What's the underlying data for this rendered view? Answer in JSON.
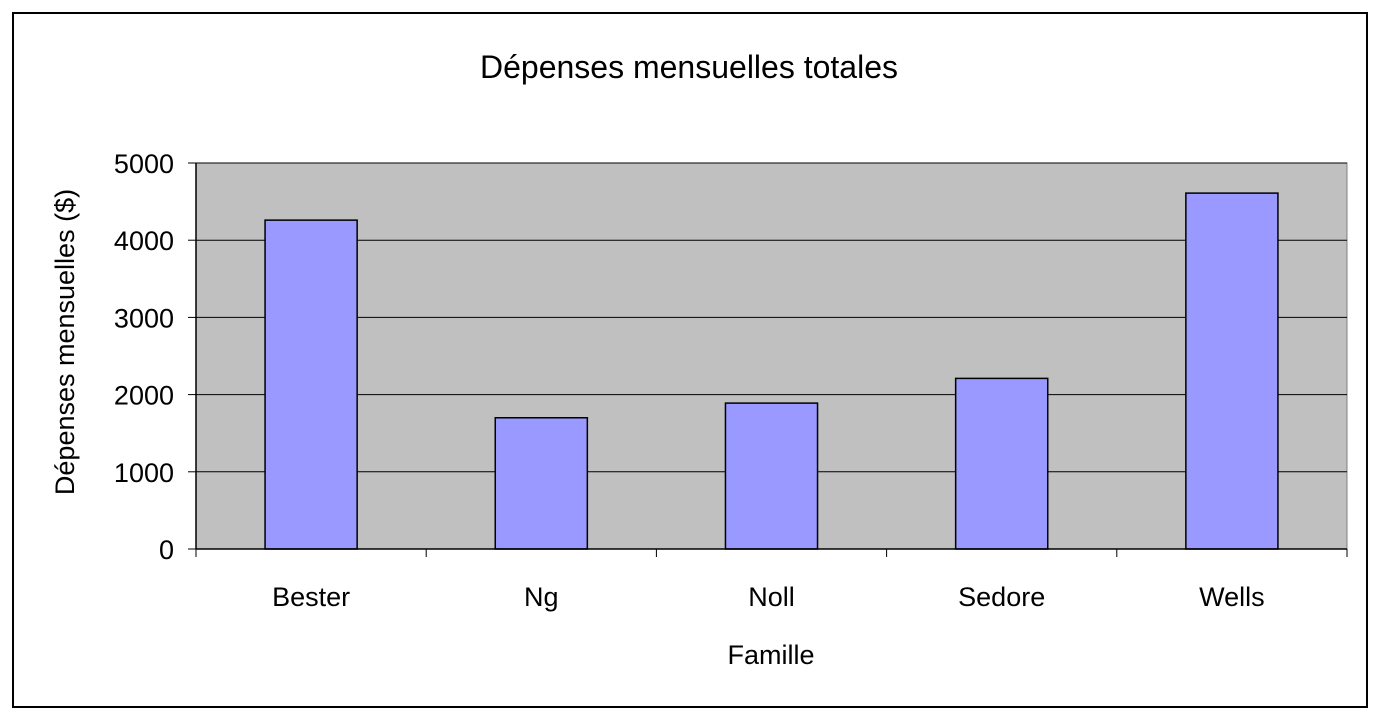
{
  "chart_data": {
    "type": "bar",
    "title": "Dépenses mensuelles totales",
    "xlabel": "Famille",
    "ylabel": "Dépenses mensuelles ($)",
    "categories": [
      "Bester",
      "Ng",
      "Noll",
      "Sedore",
      "Wells"
    ],
    "values": [
      4260,
      1700,
      1890,
      2210,
      4610
    ],
    "yticks": [
      0,
      1000,
      2000,
      3000,
      4000,
      5000
    ],
    "ylim": [
      0,
      5000
    ],
    "grid": "horizontal",
    "legend": "none",
    "colors": {
      "bar_fill": "#9999ff",
      "plot_background": "#c0c0c0",
      "gridline": "#000000"
    }
  }
}
